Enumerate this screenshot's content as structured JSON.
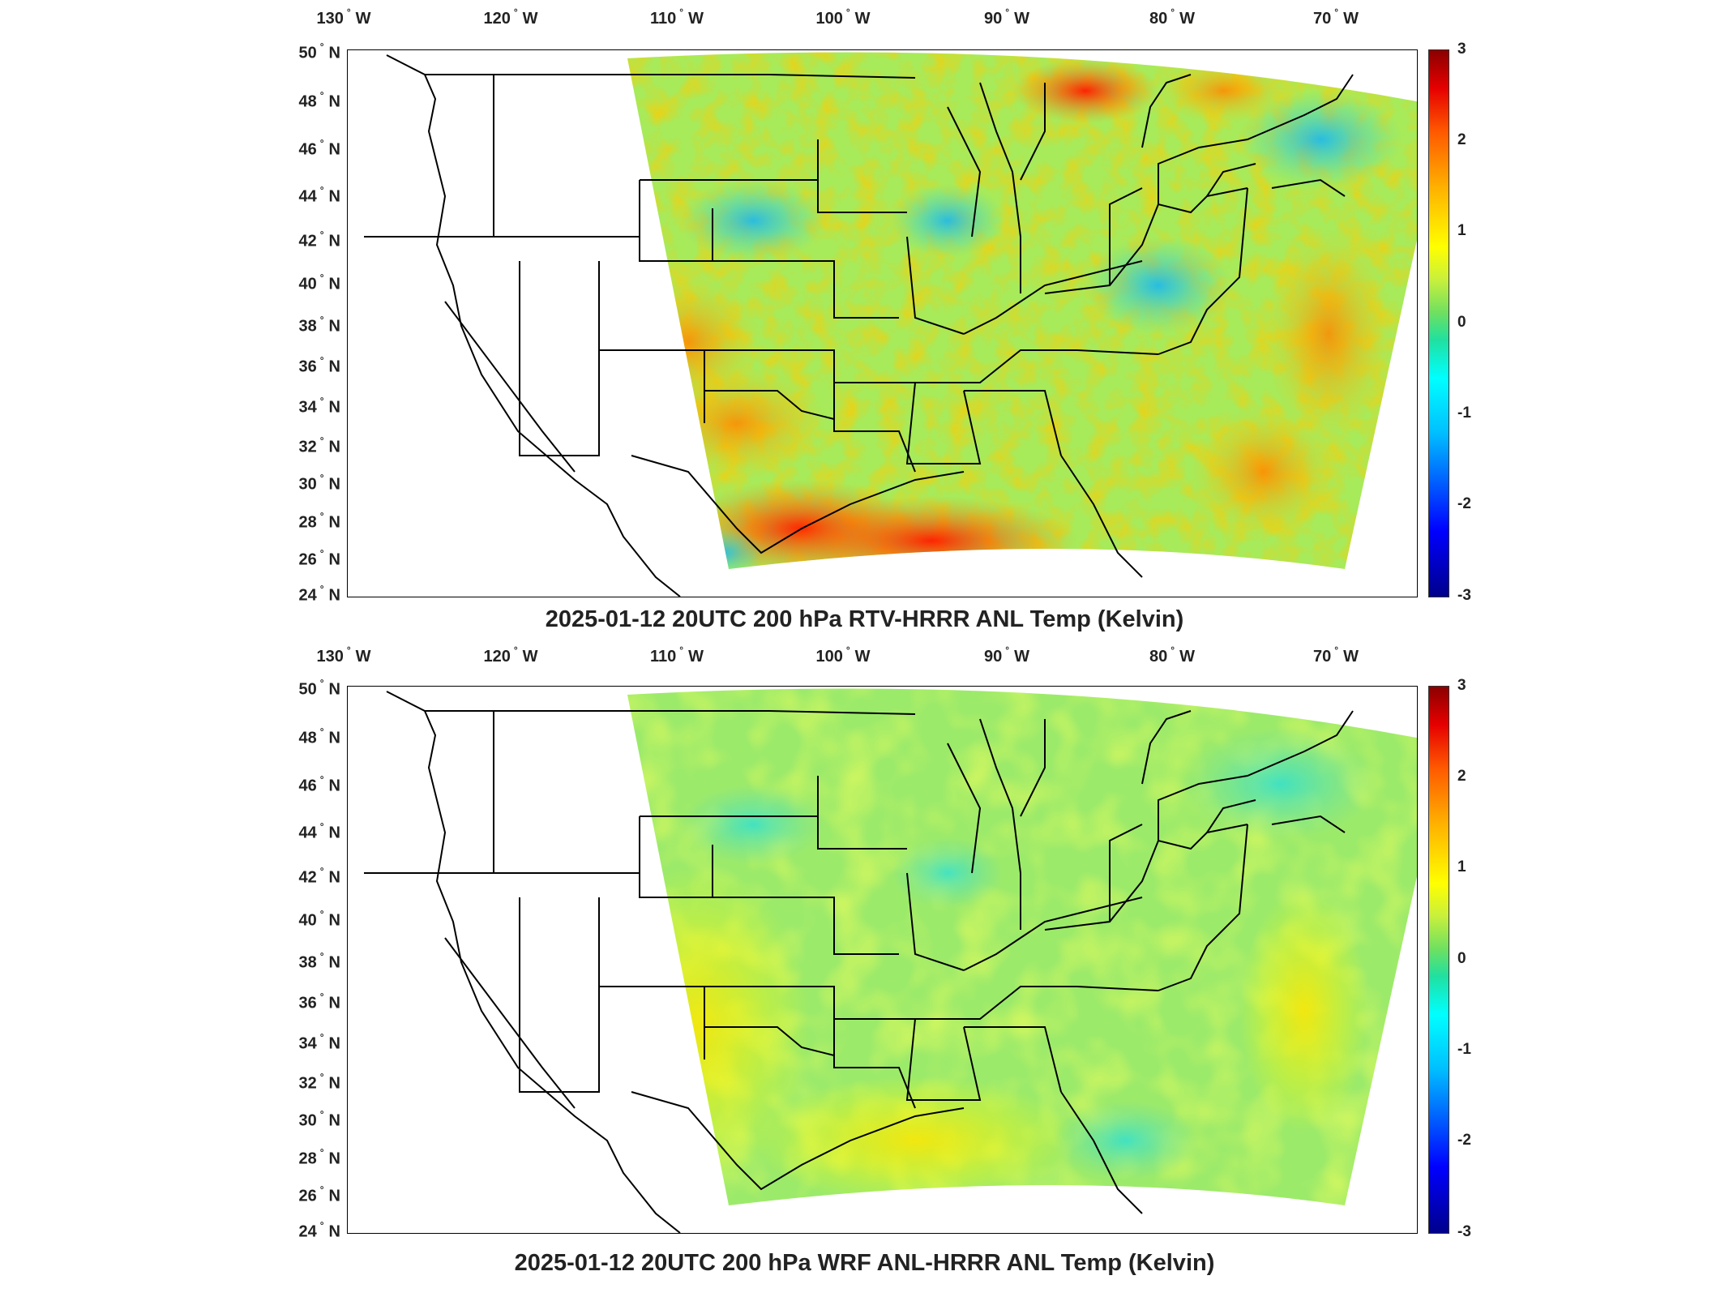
{
  "figure": {
    "panels": [
      {
        "title": "2025-01-12 20UTC 200 hPa RTV-HRRR ANL Temp (Kelvin)",
        "field_character": "strong positive anomalies over Gulf of Mexico, southern Texas, Lake Superior and Atlantic offshore; negative anomalies over Maine and Iowa"
      },
      {
        "title": "2025-01-12 20UTC 200 hPa WRF ANL-HRRR ANL Temp (Kelvin)",
        "field_character": "weak mostly near-zero field with slight positive values in southwest"
      }
    ],
    "longitude_labels": [
      {
        "deg": "130",
        "dir": "W"
      },
      {
        "deg": "120",
        "dir": "W"
      },
      {
        "deg": "110",
        "dir": "W"
      },
      {
        "deg": "100",
        "dir": "W"
      },
      {
        "deg": "90",
        "dir": "W"
      },
      {
        "deg": "80",
        "dir": "W"
      },
      {
        "deg": "70",
        "dir": "W"
      }
    ],
    "latitude_labels": [
      {
        "deg": "50",
        "dir": "N"
      },
      {
        "deg": "48",
        "dir": "N"
      },
      {
        "deg": "46",
        "dir": "N"
      },
      {
        "deg": "44",
        "dir": "N"
      },
      {
        "deg": "42",
        "dir": "N"
      },
      {
        "deg": "40",
        "dir": "N"
      },
      {
        "deg": "38",
        "dir": "N"
      },
      {
        "deg": "36",
        "dir": "N"
      },
      {
        "deg": "34",
        "dir": "N"
      },
      {
        "deg": "32",
        "dir": "N"
      },
      {
        "deg": "30",
        "dir": "N"
      },
      {
        "deg": "28",
        "dir": "N"
      },
      {
        "deg": "26",
        "dir": "N"
      },
      {
        "deg": "24",
        "dir": "N"
      }
    ],
    "colorbar": {
      "min": -3,
      "max": 3,
      "ticks": [
        "3",
        "2",
        "1",
        "0",
        "-1",
        "-2",
        "-3"
      ],
      "colormap": "jet"
    },
    "colors": {
      "outline": "#000000",
      "neutral": "#8ee27a",
      "warm": "#ff6a00",
      "cool": "#19d4f0"
    }
  }
}
